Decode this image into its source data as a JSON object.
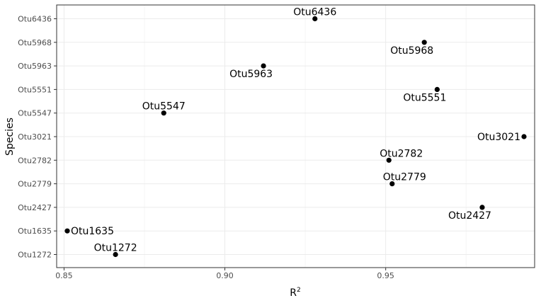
{
  "chart_data": {
    "type": "scatter",
    "xlabel": "R",
    "xlabel_superscript": "2",
    "ylabel": "Species",
    "xlim": [
      0.8477,
      0.9963
    ],
    "x_ticks": [
      0.85,
      0.9,
      0.95
    ],
    "x_tick_labels": [
      "0.85",
      "0.90",
      "0.95"
    ],
    "grid": true,
    "categories": [
      "Otu1272",
      "Otu1635",
      "Otu2427",
      "Otu2779",
      "Otu2782",
      "Otu3021",
      "Otu5547",
      "Otu5551",
      "Otu5963",
      "Otu5968",
      "Otu6436"
    ],
    "points": [
      {
        "species": "Otu6436",
        "x": 0.928,
        "label": "Otu6436",
        "label_pos": "above"
      },
      {
        "species": "Otu5968",
        "x": 0.962,
        "label": "Otu5968",
        "label_pos": "below-left"
      },
      {
        "species": "Otu5963",
        "x": 0.912,
        "label": "Otu5963",
        "label_pos": "below-left"
      },
      {
        "species": "Otu5551",
        "x": 0.966,
        "label": "Otu5551",
        "label_pos": "below-left"
      },
      {
        "species": "Otu5547",
        "x": 0.881,
        "label": "Otu5547",
        "label_pos": "above"
      },
      {
        "species": "Otu3021",
        "x": 0.993,
        "label": "Otu3021",
        "label_pos": "left"
      },
      {
        "species": "Otu2782",
        "x": 0.951,
        "label": "Otu2782",
        "label_pos": "above-right"
      },
      {
        "species": "Otu2779",
        "x": 0.952,
        "label": "Otu2779",
        "label_pos": "above-right"
      },
      {
        "species": "Otu2427",
        "x": 0.98,
        "label": "Otu2427",
        "label_pos": "below-left"
      },
      {
        "species": "Otu1635",
        "x": 0.851,
        "label": "Otu1635",
        "label_pos": "right"
      },
      {
        "species": "Otu1272",
        "x": 0.866,
        "label": "Otu1272",
        "label_pos": "above"
      }
    ],
    "colors": {
      "point": "#000000",
      "panel_border": "#333333",
      "grid_major": "#ebebeb",
      "grid_minor": "#f5f5f5",
      "tick_text": "#4d4d4d"
    }
  }
}
